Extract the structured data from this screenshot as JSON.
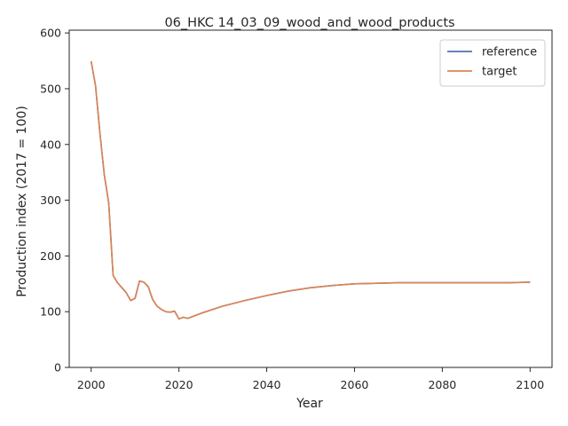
{
  "chart_data": {
    "type": "line",
    "title": "06_HKC 14_03_09_wood_and_wood_products",
    "xlabel": "Year",
    "ylabel": "Production index (2017 = 100)",
    "xlim": [
      1995,
      2105
    ],
    "ylim": [
      0,
      605
    ],
    "xticks": [
      2000,
      2020,
      2040,
      2060,
      2080,
      2100
    ],
    "yticks": [
      0,
      100,
      200,
      300,
      400,
      500,
      600
    ],
    "grid": false,
    "legend_position": "top-right",
    "series": [
      {
        "name": "reference",
        "color": "#4c72b0",
        "x": [
          2000,
          2001,
          2002,
          2003,
          2004,
          2005,
          2006,
          2007,
          2008,
          2009,
          2010,
          2011,
          2012,
          2013,
          2014,
          2015,
          2016,
          2017,
          2018,
          2019,
          2020,
          2021,
          2022,
          2025,
          2030,
          2035,
          2040,
          2045,
          2050,
          2055,
          2060,
          2065,
          2070,
          2075,
          2080,
          2085,
          2090,
          2095,
          2100
        ],
        "y": [
          549,
          505,
          420,
          345,
          295,
          165,
          152,
          143,
          134,
          120,
          124,
          155,
          153,
          145,
          122,
          110,
          104,
          100,
          99,
          101,
          87,
          90,
          88,
          97,
          110,
          120,
          129,
          137,
          143,
          147,
          150,
          151,
          152,
          152,
          152,
          152,
          152,
          152,
          153
        ]
      },
      {
        "name": "target",
        "color": "#dd8452",
        "x": [
          2000,
          2001,
          2002,
          2003,
          2004,
          2005,
          2006,
          2007,
          2008,
          2009,
          2010,
          2011,
          2012,
          2013,
          2014,
          2015,
          2016,
          2017,
          2018,
          2019,
          2020,
          2021,
          2022,
          2025,
          2030,
          2035,
          2040,
          2045,
          2050,
          2055,
          2060,
          2065,
          2070,
          2075,
          2080,
          2085,
          2090,
          2095,
          2100
        ],
        "y": [
          549,
          505,
          420,
          345,
          295,
          165,
          152,
          143,
          134,
          120,
          124,
          155,
          153,
          145,
          122,
          110,
          104,
          100,
          99,
          101,
          87,
          90,
          88,
          97,
          110,
          120,
          129,
          137,
          143,
          147,
          150,
          151,
          152,
          152,
          152,
          152,
          152,
          152,
          153
        ]
      }
    ]
  }
}
